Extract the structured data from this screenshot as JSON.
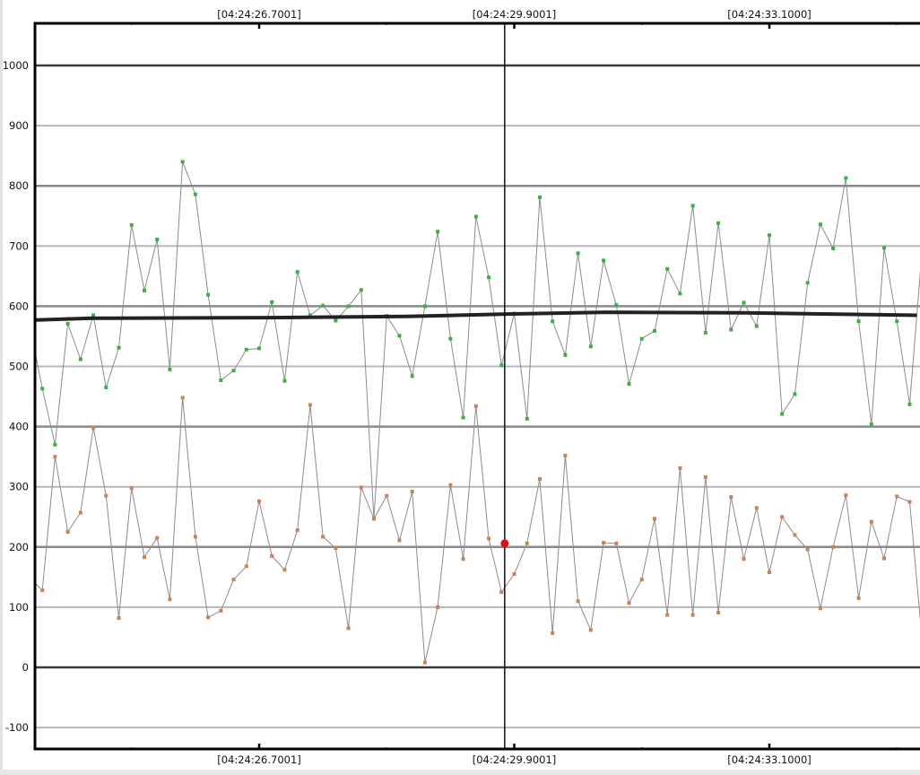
{
  "chart_data": {
    "type": "line",
    "title": "",
    "xlabel": "",
    "ylabel": "",
    "ylim": [
      -137,
      1071
    ],
    "xlim": [
      23.9,
      34.95
    ],
    "grid": true,
    "y_ticks": [
      -100,
      0,
      100,
      200,
      300,
      400,
      500,
      600,
      700,
      800,
      900,
      1000
    ],
    "y_tick_labels": [
      "-100",
      "0",
      "100",
      "200",
      "300",
      "400",
      "500",
      "600",
      "700",
      "800",
      "900",
      "1000"
    ],
    "x_major_ticks": [
      26.7001,
      29.9001,
      33.1
    ],
    "x_minor_ticks": [
      25.1001,
      28.3001,
      31.5001,
      34.7001
    ],
    "x_tick_labels": [
      "[04:24:26.7001]",
      "[04:24:29.9001]",
      "[04:24:33.1000]"
    ],
    "x_start_seconds": 23.82,
    "x_step_seconds": 0.16,
    "series": [
      {
        "name": "upper",
        "color": "#3cb043",
        "values": [
          570,
          463,
          370,
          571,
          512,
          585,
          465,
          531,
          735,
          626,
          711,
          495,
          840,
          786,
          619,
          477,
          493,
          528,
          530,
          607,
          476,
          657,
          585,
          601,
          576,
          600,
          627,
          247,
          584,
          551,
          484,
          600,
          724,
          546,
          415,
          749,
          648,
          502,
          588,
          413,
          781,
          575,
          519,
          688,
          533,
          676,
          602,
          471,
          546,
          559,
          662,
          621,
          767,
          556,
          738,
          561,
          606,
          567,
          718,
          421,
          454,
          639,
          736,
          696,
          813,
          575,
          404,
          697,
          575,
          437,
          700
        ]
      },
      {
        "name": "lower",
        "color": "#c8825a",
        "values": [
          150,
          128,
          350,
          225,
          257,
          398,
          285,
          82,
          298,
          183,
          215,
          113,
          448,
          217,
          83,
          94,
          146,
          168,
          276,
          185,
          162,
          228,
          436,
          217,
          198,
          65,
          299,
          247,
          285,
          211,
          292,
          8,
          100,
          303,
          180,
          434,
          214,
          125,
          155,
          206,
          313,
          57,
          352,
          110,
          62,
          207,
          206,
          107,
          146,
          247,
          87,
          331,
          87,
          316,
          91,
          283,
          180,
          265,
          158,
          250,
          220,
          196,
          98,
          200,
          286,
          115,
          242,
          181,
          284,
          275,
          40
        ]
      },
      {
        "name": "average",
        "color": "#222222",
        "points": [
          [
            23.9,
            577
          ],
          [
            24.6,
            580
          ],
          [
            26.85,
            581
          ],
          [
            28.55,
            583
          ],
          [
            29.8,
            587
          ],
          [
            31.05,
            590
          ],
          [
            32.8,
            589
          ],
          [
            34.95,
            585
          ]
        ]
      }
    ],
    "cursor": {
      "time_seconds": 29.78,
      "marker_value": 206,
      "marker_color": "#e01010"
    }
  }
}
